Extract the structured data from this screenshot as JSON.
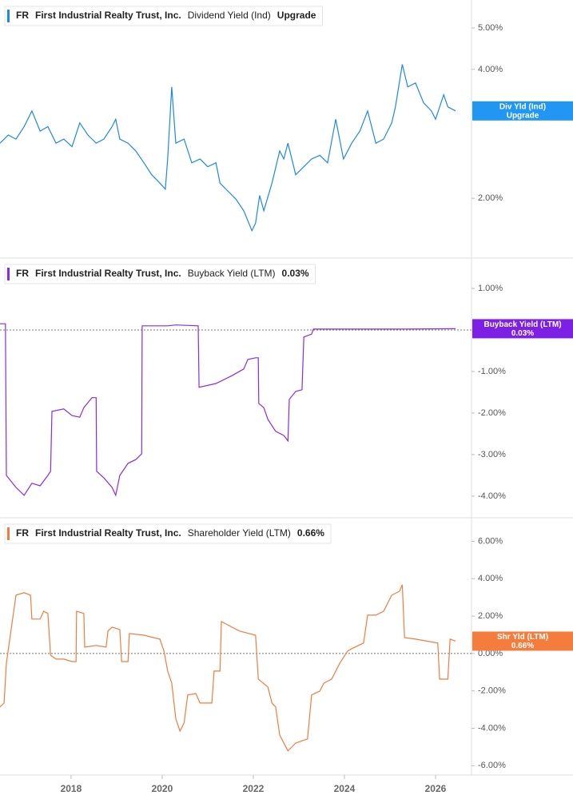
{
  "chart_data": [
    {
      "type": "line",
      "ticker": "FR",
      "company": "First Industrial Realty Trust, Inc.",
      "log": true,
      "x": [
        2016.44,
        2016.62,
        2016.79,
        2016.97,
        2017.14,
        2017.32,
        2017.49,
        2017.67,
        2017.84,
        2018.02,
        2018.19,
        2018.37,
        2018.55,
        2018.72,
        2018.9,
        2018.98,
        2019.07,
        2019.25,
        2019.42,
        2019.6,
        2019.77,
        2019.95,
        2020.07,
        2020.12,
        2020.21,
        2020.3,
        2020.48,
        2020.65,
        2020.83,
        2021.0,
        2021.18,
        2021.27,
        2021.44,
        2021.62,
        2021.79,
        2021.97,
        2022.05,
        2022.14,
        2022.23,
        2022.41,
        2022.58,
        2022.67,
        2022.76,
        2022.93,
        2023.11,
        2023.28,
        2023.46,
        2023.63,
        2023.81,
        2023.98,
        2024.16,
        2024.34,
        2024.51,
        2024.69,
        2024.86,
        2025.04,
        2025.12,
        2025.27,
        2025.39,
        2025.56,
        2025.74,
        2025.91,
        2026.0,
        2026.18,
        2026.27,
        2026.44
      ],
      "series": [
        {
          "name": "Dividend Yield (Ind)",
          "color": "#1e88e5",
          "values": [
            2.69,
            2.81,
            2.75,
            2.94,
            3.2,
            2.87,
            2.94,
            2.69,
            2.75,
            2.64,
            3.0,
            2.81,
            2.69,
            2.75,
            2.94,
            3.06,
            2.75,
            2.69,
            2.58,
            2.42,
            2.27,
            2.17,
            2.1,
            2.47,
            3.64,
            2.69,
            2.75,
            2.42,
            2.47,
            2.37,
            2.42,
            2.17,
            2.08,
            1.99,
            1.87,
            1.68,
            1.75,
            2.03,
            1.87,
            2.17,
            2.58,
            2.47,
            2.69,
            2.27,
            2.37,
            2.47,
            2.52,
            2.42,
            3.06,
            2.47,
            2.69,
            2.87,
            3.2,
            2.69,
            2.75,
            3.0,
            3.27,
            4.11,
            3.64,
            3.72,
            3.34,
            3.2,
            3.06,
            3.49,
            3.27,
            3.2
          ]
        }
      ],
      "badge": {
        "name": "Div Yld (Ind)",
        "label": "Upgrade",
        "color": "#2196f3"
      },
      "xlim": [
        2016.44,
        2026.79
      ],
      "ylim": [
        1.45,
        5.81
      ],
      "yticks": [
        {
          "value": 5,
          "label": "5.00%"
        },
        {
          "value": 4,
          "label": "4.00%"
        },
        {
          "value": 2,
          "label": "2.00%"
        }
      ]
    },
    {
      "type": "line",
      "ticker": "FR",
      "company": "First Industrial Realty Trust, Inc.",
      "x": [
        2016.44,
        2016.56,
        2016.58,
        2016.79,
        2016.97,
        2017.14,
        2017.32,
        2017.49,
        2017.55,
        2017.58,
        2017.84,
        2018.02,
        2018.19,
        2018.28,
        2018.46,
        2018.55,
        2018.56,
        2018.72,
        2018.9,
        2018.98,
        2019.07,
        2019.25,
        2019.42,
        2019.55,
        2019.56,
        2020.12,
        2020.3,
        2020.79,
        2020.81,
        2021.18,
        2021.53,
        2021.79,
        2021.88,
        2022.05,
        2022.11,
        2022.12,
        2022.23,
        2022.32,
        2022.49,
        2022.67,
        2022.76,
        2022.79,
        2022.93,
        2023.07,
        2023.11,
        2023.28,
        2023.32,
        2023.98,
        2025.21,
        2026.44
      ],
      "series": [
        {
          "name": "Buyback Yield (LTM)",
          "color": "#8a2be2",
          "values": [
            0.15,
            0.15,
            -3.5,
            -3.79,
            -3.98,
            -3.69,
            -3.75,
            -3.5,
            -3.4,
            -1.96,
            -1.9,
            -2.06,
            -2.1,
            -1.87,
            -1.63,
            -1.63,
            -3.4,
            -3.56,
            -3.79,
            -3.98,
            -3.5,
            -3.21,
            -3.12,
            -2.98,
            0.1,
            0.1,
            0.12,
            0.1,
            -1.38,
            -1.29,
            -1.1,
            -0.94,
            -0.71,
            -0.67,
            -0.67,
            -1.77,
            -1.87,
            -2.15,
            -2.44,
            -2.54,
            -2.67,
            -1.67,
            -1.48,
            -1.44,
            -0.17,
            -0.1,
            0.02,
            0.02,
            0.02,
            0.03
          ]
        }
      ],
      "badge": {
        "value": 0.03,
        "label": "0.03%",
        "color": "#7e1fe6"
      },
      "xlim": [
        2016.44,
        2026.79
      ],
      "ylim": [
        -4.52,
        1.73
      ],
      "yticks": [
        {
          "value": 1,
          "label": "1.00%"
        },
        {
          "value": -1,
          "label": "-1.00%"
        },
        {
          "value": -2,
          "label": "-2.00%"
        },
        {
          "value": -3,
          "label": "-3.00%"
        },
        {
          "value": -4,
          "label": "-4.00%"
        }
      ]
    },
    {
      "type": "line",
      "ticker": "FR",
      "company": "First Industrial Realty Trust, Inc.",
      "x": [
        2016.44,
        2016.53,
        2016.58,
        2016.79,
        2016.97,
        2017.11,
        2017.14,
        2017.32,
        2017.4,
        2017.49,
        2017.55,
        2017.67,
        2017.84,
        2018.02,
        2018.11,
        2018.12,
        2018.28,
        2018.3,
        2018.55,
        2018.77,
        2018.81,
        2018.9,
        2019.07,
        2019.11,
        2019.25,
        2019.28,
        2019.6,
        2019.95,
        2020.04,
        2020.12,
        2020.21,
        2020.3,
        2020.39,
        2020.48,
        2020.56,
        2020.74,
        2020.83,
        2021.09,
        2021.14,
        2021.27,
        2021.3,
        2021.53,
        2021.7,
        2022.05,
        2022.11,
        2022.32,
        2022.41,
        2022.49,
        2022.58,
        2022.76,
        2022.93,
        2023.19,
        2023.28,
        2023.46,
        2023.55,
        2023.72,
        2023.9,
        2024.07,
        2024.16,
        2024.42,
        2024.51,
        2024.69,
        2024.86,
        2025.04,
        2025.21,
        2025.27,
        2025.32,
        2025.56,
        2026.05,
        2026.09,
        2026.27,
        2026.32,
        2026.44
      ],
      "series": [
        {
          "name": "Shareholder Yield (LTM)",
          "color": "#f07c3e",
          "values": [
            -2.86,
            -2.65,
            -0.51,
            3.12,
            3.25,
            3.12,
            1.84,
            1.84,
            2.26,
            2.14,
            -0.09,
            -0.3,
            -0.3,
            -0.43,
            -0.43,
            2.26,
            2.14,
            0.34,
            0.43,
            0.34,
            1.2,
            1.41,
            1.28,
            -0.43,
            -0.43,
            1.07,
            0.98,
            0.77,
            0.13,
            -0.94,
            -1.58,
            -3.5,
            -4.15,
            -3.72,
            -2.22,
            -2.14,
            -2.65,
            -2.65,
            -0.94,
            -0.94,
            1.71,
            1.41,
            1.2,
            0.98,
            -1.37,
            -1.79,
            -2.65,
            -2.86,
            -4.36,
            -5.21,
            -4.79,
            -4.57,
            -2.22,
            -2.01,
            -1.58,
            -1.37,
            -0.51,
            0.13,
            0.26,
            0.56,
            2.05,
            2.05,
            2.26,
            3.12,
            3.33,
            3.68,
            0.85,
            0.77,
            0.56,
            -1.37,
            -1.37,
            0.77,
            0.66
          ]
        }
      ],
      "badge": {
        "name": "Shr Yld (LTM)",
        "value": 0.66,
        "label": "0.66%",
        "color": "#f47c3c"
      },
      "xlim": [
        2016.44,
        2026.79
      ],
      "ylim": [
        -6.5,
        7.26
      ],
      "yticks": [
        {
          "value": 6,
          "label": "6.00%"
        },
        {
          "value": 4,
          "label": "4.00%"
        },
        {
          "value": 2,
          "label": "2.00%"
        },
        {
          "value": 0,
          "label": "0.00%"
        },
        {
          "value": -2,
          "label": "-2.00%"
        },
        {
          "value": -4,
          "label": "-4.00%"
        },
        {
          "value": -6,
          "label": "-6.00%"
        }
      ],
      "xticks": [
        2018,
        2020,
        2022,
        2024,
        2026
      ]
    }
  ]
}
